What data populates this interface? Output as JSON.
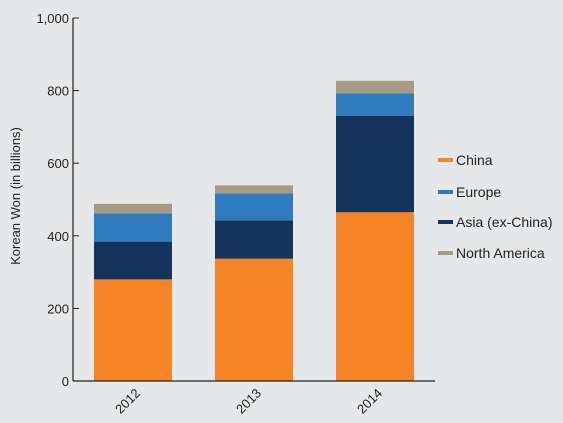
{
  "chart_data": {
    "type": "bar",
    "stacked": true,
    "categories": [
      "2012",
      "2013",
      "2014"
    ],
    "series": [
      {
        "name": "China",
        "color": "#f58426",
        "values": [
          280,
          337,
          465
        ]
      },
      {
        "name": "Asia (ex-China)",
        "color": "#14345c",
        "values": [
          104,
          105,
          265
        ]
      },
      {
        "name": "Europe",
        "color": "#2f7bbf",
        "values": [
          78,
          75,
          62
        ]
      },
      {
        "name": "North America",
        "color": "#a69b83",
        "values": [
          26,
          22,
          35
        ]
      }
    ],
    "legend_order": [
      "China",
      "Europe",
      "Asia (ex-China)",
      "North America"
    ],
    "ylabel": "Korean Won (in billions)",
    "ylim": [
      0,
      1000
    ],
    "yticks": [
      "0",
      "200",
      "400",
      "600",
      "800",
      "1,000"
    ],
    "yticks_values": [
      0,
      200,
      400,
      600,
      800,
      1000
    ],
    "grid": false,
    "legend_position": "right"
  }
}
